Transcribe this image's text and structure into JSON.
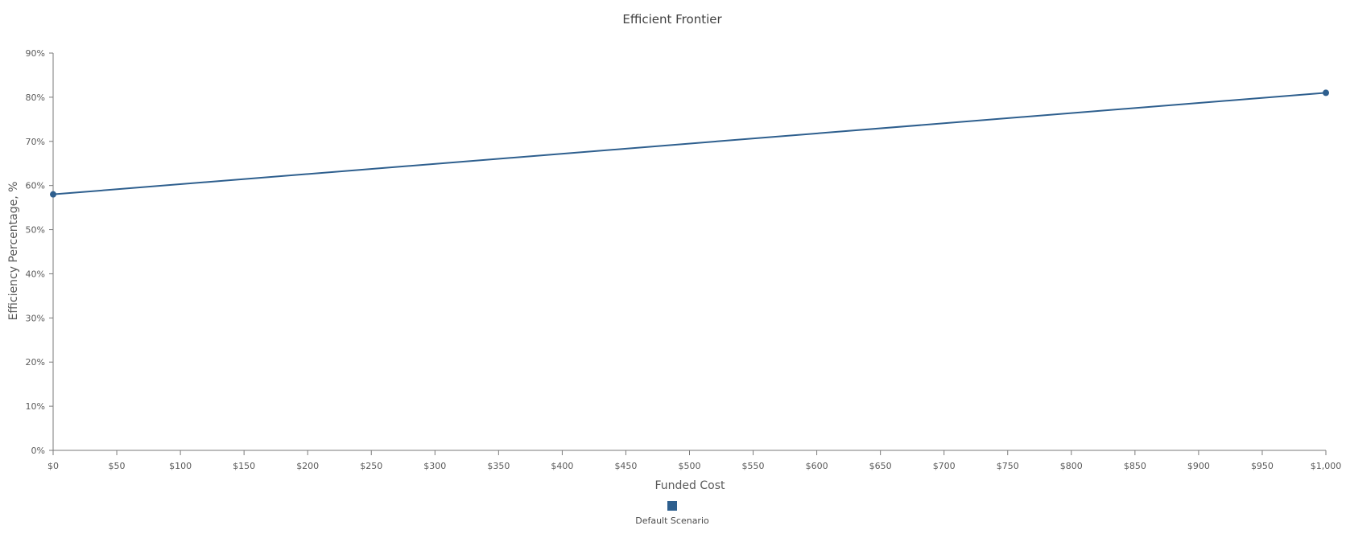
{
  "chart_data": {
    "type": "line",
    "title": "Efficient Frontier",
    "xlabel": "Funded Cost",
    "ylabel": "Efficiency Percentage, %",
    "xlim": [
      0,
      1000
    ],
    "ylim": [
      0,
      90
    ],
    "x_ticks": [
      0,
      50,
      100,
      150,
      200,
      250,
      300,
      350,
      400,
      450,
      500,
      550,
      600,
      650,
      700,
      750,
      800,
      850,
      900,
      950,
      1000
    ],
    "x_tick_labels": [
      "$0",
      "$50",
      "$100",
      "$150",
      "$200",
      "$250",
      "$300",
      "$350",
      "$400",
      "$450",
      "$500",
      "$550",
      "$600",
      "$650",
      "$700",
      "$750",
      "$800",
      "$850",
      "$900",
      "$950",
      "$1,000"
    ],
    "y_ticks": [
      0,
      10,
      20,
      30,
      40,
      50,
      60,
      70,
      80,
      90
    ],
    "y_tick_labels": [
      "0%",
      "10%",
      "20%",
      "30%",
      "40%",
      "50%",
      "60%",
      "70%",
      "80%",
      "90%"
    ],
    "grid": false,
    "legend_position": "bottom-center",
    "series": [
      {
        "name": "Default Scenario",
        "color": "#2e5f8e",
        "points": [
          {
            "x": 0,
            "y": 58
          },
          {
            "x": 1000,
            "y": 81
          }
        ]
      }
    ]
  }
}
